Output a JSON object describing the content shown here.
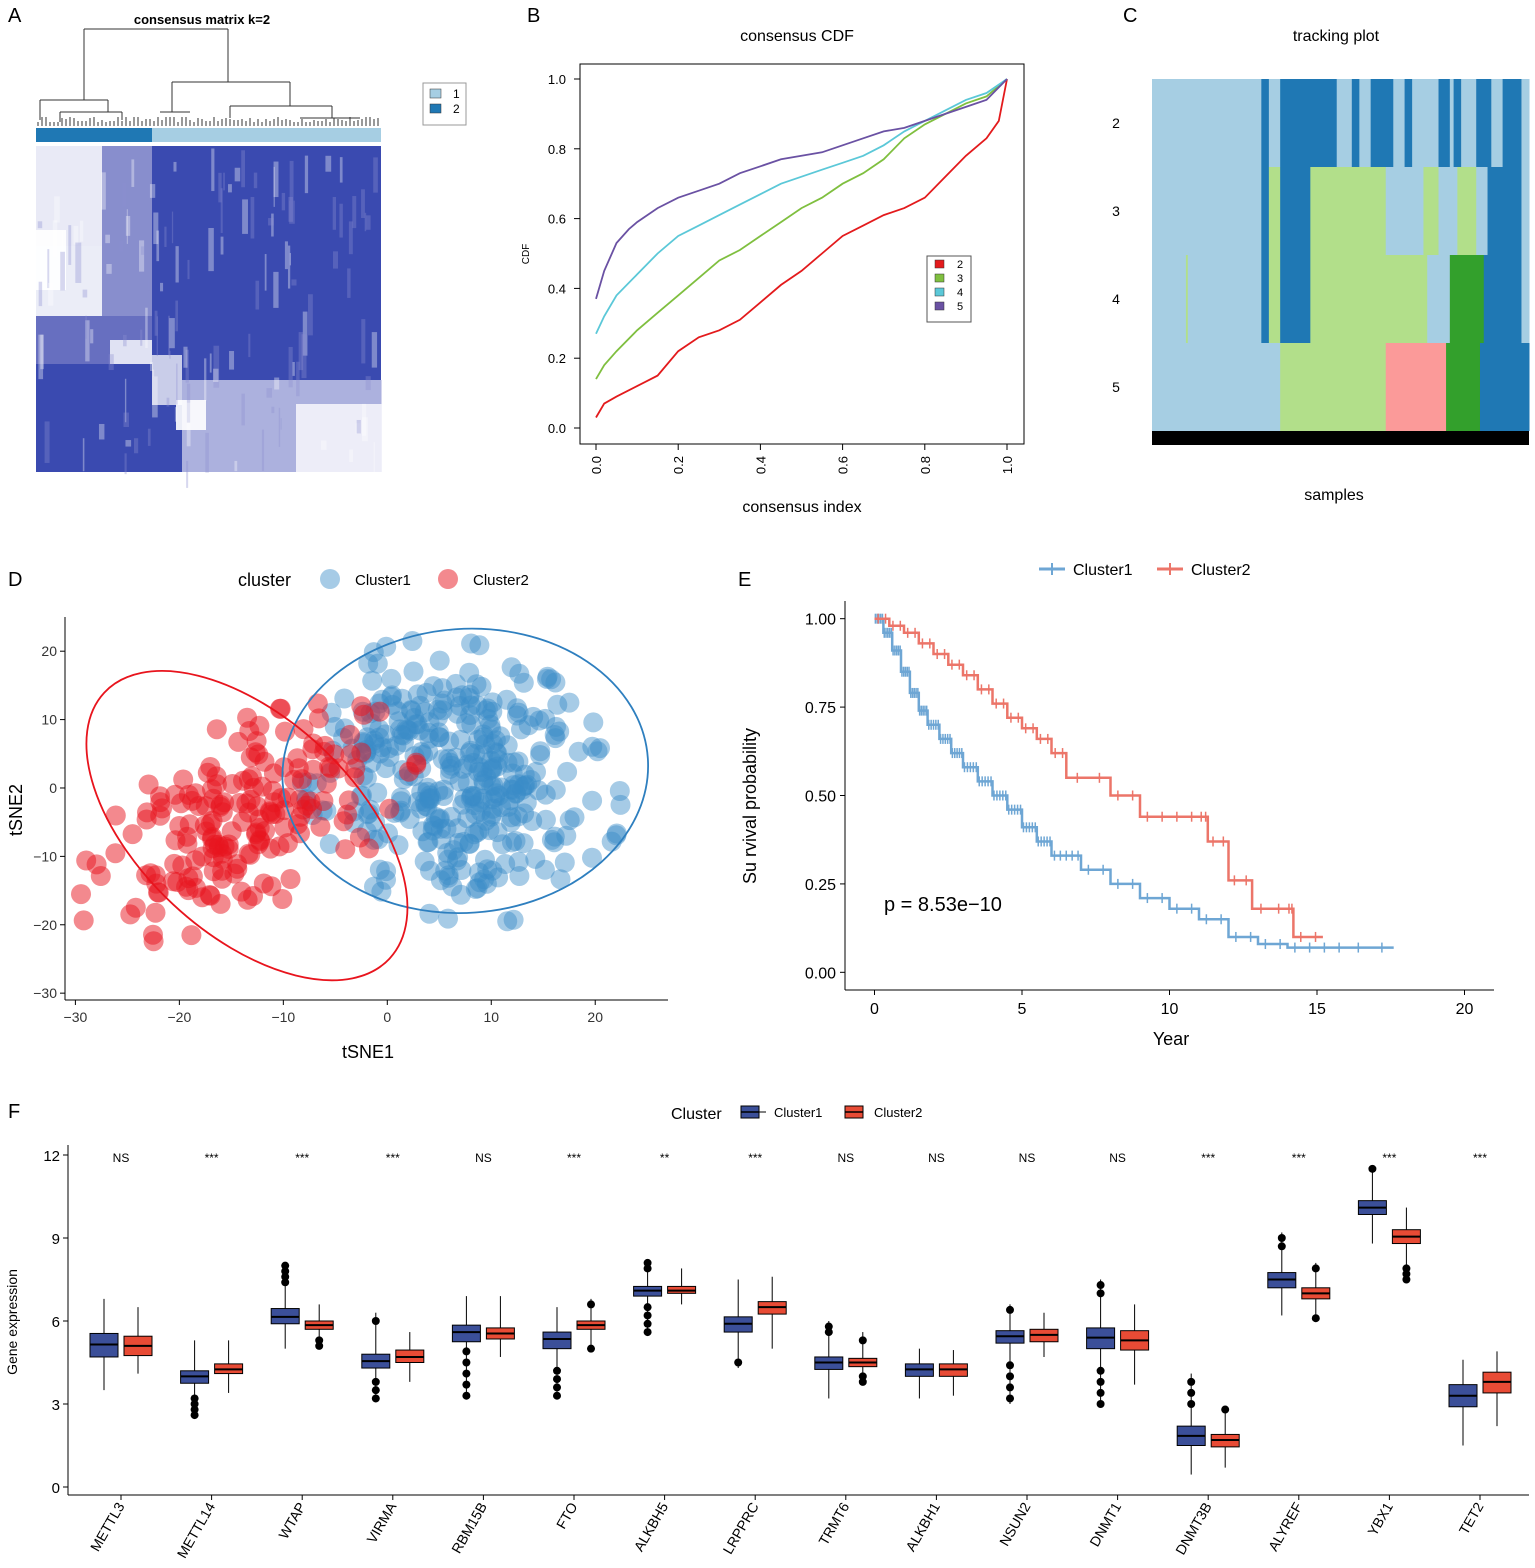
{
  "panels": {
    "A": {
      "letter": "A",
      "title": "consensus matrix k=2",
      "legend": [
        {
          "label": "1",
          "color": "#a6cee3"
        },
        {
          "label": "2",
          "color": "#1f78b4"
        }
      ]
    },
    "B": {
      "letter": "B"
    },
    "C": {
      "letter": "C"
    },
    "D": {
      "letter": "D"
    },
    "E": {
      "letter": "E"
    },
    "F": {
      "letter": "F"
    }
  },
  "chart_data": [
    {
      "id": "B",
      "type": "line",
      "title": "consensus CDF",
      "xlabel": "consensus index",
      "ylabel": "CDF",
      "xlim": [
        0,
        1
      ],
      "ylim": [
        0,
        1
      ],
      "xticks": [
        "0.0",
        "0.2",
        "0.4",
        "0.6",
        "0.8",
        "1.0"
      ],
      "yticks": [
        "0.0",
        "0.2",
        "0.4",
        "0.6",
        "0.8",
        "1.0"
      ],
      "series": [
        {
          "name": "2",
          "color": "#e31a1c",
          "x": [
            0,
            0.02,
            0.05,
            0.1,
            0.15,
            0.2,
            0.25,
            0.3,
            0.35,
            0.4,
            0.45,
            0.5,
            0.55,
            0.6,
            0.65,
            0.7,
            0.75,
            0.8,
            0.85,
            0.9,
            0.95,
            0.98,
            1.0
          ],
          "y": [
            0.03,
            0.07,
            0.09,
            0.12,
            0.15,
            0.22,
            0.26,
            0.28,
            0.31,
            0.36,
            0.41,
            0.45,
            0.5,
            0.55,
            0.58,
            0.61,
            0.63,
            0.66,
            0.72,
            0.78,
            0.83,
            0.88,
            1.0
          ]
        },
        {
          "name": "3",
          "color": "#7fbf3f",
          "x": [
            0,
            0.02,
            0.05,
            0.1,
            0.15,
            0.2,
            0.25,
            0.3,
            0.35,
            0.4,
            0.45,
            0.5,
            0.55,
            0.6,
            0.65,
            0.7,
            0.75,
            0.8,
            0.85,
            0.9,
            0.95,
            1.0
          ],
          "y": [
            0.14,
            0.18,
            0.22,
            0.28,
            0.33,
            0.38,
            0.43,
            0.48,
            0.51,
            0.55,
            0.59,
            0.63,
            0.66,
            0.7,
            0.73,
            0.77,
            0.83,
            0.87,
            0.9,
            0.93,
            0.95,
            1.0
          ]
        },
        {
          "name": "4",
          "color": "#5bc8d8",
          "x": [
            0,
            0.02,
            0.05,
            0.1,
            0.15,
            0.2,
            0.25,
            0.3,
            0.35,
            0.4,
            0.45,
            0.5,
            0.55,
            0.6,
            0.65,
            0.7,
            0.75,
            0.8,
            0.85,
            0.9,
            0.95,
            1.0
          ],
          "y": [
            0.27,
            0.32,
            0.38,
            0.44,
            0.5,
            0.55,
            0.58,
            0.61,
            0.64,
            0.67,
            0.7,
            0.72,
            0.74,
            0.76,
            0.78,
            0.81,
            0.85,
            0.88,
            0.91,
            0.94,
            0.96,
            1.0
          ]
        },
        {
          "name": "5",
          "color": "#6a51a3",
          "x": [
            0,
            0.02,
            0.05,
            0.08,
            0.1,
            0.15,
            0.2,
            0.25,
            0.3,
            0.35,
            0.4,
            0.45,
            0.5,
            0.55,
            0.6,
            0.65,
            0.7,
            0.75,
            0.8,
            0.85,
            0.9,
            0.95,
            1.0
          ],
          "y": [
            0.37,
            0.45,
            0.53,
            0.57,
            0.59,
            0.63,
            0.66,
            0.68,
            0.7,
            0.73,
            0.75,
            0.77,
            0.78,
            0.79,
            0.81,
            0.83,
            0.85,
            0.86,
            0.88,
            0.9,
            0.92,
            0.94,
            1.0
          ]
        }
      ]
    },
    {
      "id": "C",
      "type": "heatmap",
      "title": "tracking plot",
      "xlabel": "samples",
      "rows": [
        "2",
        "3",
        "4",
        "5"
      ],
      "colors": {
        "1": "#a6cee3",
        "2": "#1f78b4",
        "3": "#b2df8a",
        "4": "#33a02c",
        "5": "#fb9a99"
      },
      "segments": [
        [
          [
            0,
            0.29,
            "1"
          ],
          [
            0.29,
            0.31,
            "2"
          ],
          [
            0.31,
            0.34,
            "1"
          ],
          [
            0.34,
            0.49,
            "2"
          ],
          [
            0.49,
            0.53,
            "1"
          ],
          [
            0.53,
            0.55,
            "2"
          ],
          [
            0.55,
            0.58,
            "1"
          ],
          [
            0.58,
            0.64,
            "2"
          ],
          [
            0.64,
            0.67,
            "1"
          ],
          [
            0.67,
            0.69,
            "2"
          ],
          [
            0.69,
            0.76,
            "1"
          ],
          [
            0.76,
            0.79,
            "2"
          ],
          [
            0.79,
            0.8,
            "1"
          ],
          [
            0.8,
            0.82,
            "2"
          ],
          [
            0.82,
            0.86,
            "1"
          ],
          [
            0.86,
            0.9,
            "2"
          ],
          [
            0.9,
            0.93,
            "1"
          ],
          [
            0.93,
            0.98,
            "2"
          ],
          [
            0.98,
            1,
            "1"
          ]
        ],
        [
          [
            0,
            0.29,
            "1"
          ],
          [
            0.29,
            0.31,
            "2"
          ],
          [
            0.31,
            0.34,
            "3"
          ],
          [
            0.34,
            0.42,
            "2"
          ],
          [
            0.42,
            0.62,
            "3"
          ],
          [
            0.62,
            0.72,
            "1"
          ],
          [
            0.72,
            0.76,
            "3"
          ],
          [
            0.76,
            0.81,
            "1"
          ],
          [
            0.81,
            0.86,
            "3"
          ],
          [
            0.86,
            0.89,
            "1"
          ],
          [
            0.89,
            0.98,
            "2"
          ],
          [
            0.98,
            1,
            "1"
          ]
        ],
        [
          [
            0,
            0.09,
            "1"
          ],
          [
            0.09,
            0.095,
            "3"
          ],
          [
            0.095,
            0.29,
            "1"
          ],
          [
            0.29,
            0.31,
            "2"
          ],
          [
            0.31,
            0.34,
            "3"
          ],
          [
            0.34,
            0.42,
            "2"
          ],
          [
            0.42,
            0.73,
            "3"
          ],
          [
            0.73,
            0.79,
            "1"
          ],
          [
            0.79,
            0.88,
            "4"
          ],
          [
            0.88,
            0.98,
            "2"
          ],
          [
            0.98,
            1,
            "1"
          ]
        ],
        [
          [
            0,
            0.34,
            "1"
          ],
          [
            0.34,
            0.62,
            "3"
          ],
          [
            0.62,
            0.78,
            "5"
          ],
          [
            0.78,
            0.87,
            "4"
          ],
          [
            0.87,
            1,
            "2"
          ]
        ]
      ]
    },
    {
      "id": "D",
      "type": "scatter",
      "xlabel": "tSNE1",
      "ylabel": "tSNE2",
      "xlim": [
        -31,
        27
      ],
      "ylim": [
        -31,
        25
      ],
      "xticks": [
        "-30",
        "-20",
        "-10",
        "0",
        "10",
        "20"
      ],
      "yticks": [
        "-30",
        "-20",
        "-10",
        "0",
        "10",
        "20"
      ],
      "legend_title": "cluster",
      "series": [
        {
          "name": "Cluster1",
          "color": "#3a8cc8",
          "count": 360,
          "center": [
            7,
            1
          ],
          "spread": [
            15,
            21
          ]
        },
        {
          "name": "Cluster2",
          "color": "#e8141d",
          "count": 190,
          "center": [
            -14,
            -5
          ],
          "spread": [
            12,
            21
          ]
        }
      ]
    },
    {
      "id": "E",
      "type": "line",
      "xlabel": "Year",
      "ylabel": "Su rvival probability",
      "annotation": "p = 8.53e−10",
      "xlim": [
        -1,
        21
      ],
      "ylim": [
        -0.05,
        1.05
      ],
      "xticks": [
        "0",
        "5",
        "10",
        "15",
        "20"
      ],
      "yticks": [
        "0.00",
        "0.25",
        "0.50",
        "0.75",
        "1.00"
      ],
      "series": [
        {
          "name": "Cluster1",
          "color": "#6ea6d4",
          "x": [
            0,
            0.3,
            0.6,
            0.9,
            1.2,
            1.5,
            1.8,
            2.2,
            2.6,
            3,
            3.5,
            4,
            4.5,
            5,
            5.5,
            6,
            7,
            8,
            9,
            10,
            11,
            12,
            13,
            14,
            15,
            16,
            17.6
          ],
          "y": [
            1,
            0.96,
            0.91,
            0.85,
            0.79,
            0.74,
            0.7,
            0.66,
            0.62,
            0.58,
            0.54,
            0.5,
            0.46,
            0.41,
            0.37,
            0.33,
            0.29,
            0.25,
            0.21,
            0.18,
            0.15,
            0.1,
            0.08,
            0.07,
            0.07,
            0.07,
            0.07
          ]
        },
        {
          "name": "Cluster2",
          "color": "#ec7569",
          "x": [
            0,
            0.5,
            1,
            1.5,
            2,
            2.5,
            3,
            3.5,
            4,
            4.5,
            5,
            5.5,
            6,
            6.5,
            8,
            9,
            10,
            11,
            11.3,
            12,
            12.8,
            14,
            14.2,
            15.2
          ],
          "y": [
            1,
            0.98,
            0.96,
            0.93,
            0.9,
            0.87,
            0.84,
            0.8,
            0.76,
            0.72,
            0.69,
            0.66,
            0.62,
            0.55,
            0.5,
            0.44,
            0.44,
            0.44,
            0.37,
            0.26,
            0.18,
            0.18,
            0.1,
            0.1
          ]
        }
      ]
    },
    {
      "id": "F",
      "type": "box",
      "ylabel": "Gene expression",
      "ylim": [
        0,
        12
      ],
      "yticks": [
        "0",
        "3",
        "6",
        "9",
        "12"
      ],
      "legend_title": "Cluster",
      "series_names": [
        "Cluster1",
        "Cluster2"
      ],
      "series_colors": [
        "#3b4f99",
        "#e84b35"
      ],
      "categories": [
        "METTL3",
        "METTL14",
        "WTAP",
        "VIRMA",
        "RBM15B",
        "FTO",
        "ALKBH5",
        "LRPPRC",
        "TRMT6",
        "ALKBH1",
        "NSUN2",
        "DNMT1",
        "DNMT3B",
        "ALYREF",
        "YBX1",
        "TET2"
      ],
      "significance": [
        "NS",
        "***",
        "***",
        "***",
        "NS",
        "***",
        "**",
        "***",
        "NS",
        "NS",
        "NS",
        "NS",
        "***",
        "***",
        "***",
        "***"
      ],
      "boxes": [
        [
          [
            3.5,
            4.7,
            5.15,
            5.55,
            6.8
          ],
          [
            4.1,
            4.75,
            5.1,
            5.45,
            6.5
          ]
        ],
        [
          [
            2.5,
            3.75,
            4.0,
            4.2,
            5.3
          ],
          [
            3.4,
            4.1,
            4.25,
            4.45,
            5.3
          ]
        ],
        [
          [
            5.0,
            5.9,
            6.15,
            6.45,
            8.1
          ],
          [
            5.0,
            5.7,
            5.85,
            6.0,
            6.6
          ]
        ],
        [
          [
            3.1,
            4.3,
            4.55,
            4.8,
            6.3
          ],
          [
            3.8,
            4.5,
            4.7,
            4.95,
            5.6
          ]
        ],
        [
          [
            3.2,
            5.25,
            5.6,
            5.85,
            6.9
          ],
          [
            4.7,
            5.35,
            5.55,
            5.75,
            6.9
          ]
        ],
        [
          [
            3.2,
            5.0,
            5.35,
            5.6,
            6.5
          ],
          [
            4.9,
            5.7,
            5.85,
            6.0,
            6.8
          ]
        ],
        [
          [
            5.5,
            6.9,
            7.1,
            7.25,
            8.2
          ],
          [
            6.6,
            7.0,
            7.1,
            7.25,
            7.9
          ]
        ],
        [
          [
            4.3,
            5.6,
            5.9,
            6.15,
            7.5
          ],
          [
            5.0,
            6.25,
            6.5,
            6.7,
            7.6
          ]
        ],
        [
          [
            3.2,
            4.25,
            4.5,
            4.7,
            6.0
          ],
          [
            3.7,
            4.35,
            4.5,
            4.65,
            5.6
          ]
        ],
        [
          [
            3.2,
            4.0,
            4.25,
            4.45,
            5.0
          ],
          [
            3.3,
            4.0,
            4.25,
            4.45,
            4.95
          ]
        ],
        [
          [
            3.0,
            5.2,
            5.45,
            5.65,
            6.6
          ],
          [
            4.7,
            5.25,
            5.5,
            5.7,
            6.3
          ]
        ],
        [
          [
            2.9,
            5.0,
            5.4,
            5.75,
            7.5
          ],
          [
            3.7,
            4.95,
            5.3,
            5.65,
            6.6
          ]
        ],
        [
          [
            0.45,
            1.5,
            1.85,
            2.2,
            4.1
          ],
          [
            0.7,
            1.45,
            1.7,
            1.9,
            2.9
          ]
        ],
        [
          [
            6.2,
            7.2,
            7.5,
            7.75,
            9.2
          ],
          [
            6.0,
            6.8,
            7.0,
            7.2,
            8.1
          ]
        ],
        [
          [
            8.8,
            9.85,
            10.1,
            10.35,
            11.6
          ],
          [
            7.4,
            8.8,
            9.05,
            9.3,
            10.1
          ]
        ],
        [
          [
            1.5,
            2.9,
            3.3,
            3.7,
            4.6
          ],
          [
            2.2,
            3.4,
            3.8,
            4.15,
            4.9
          ]
        ]
      ],
      "outliers": [
        [
          [],
          []
        ],
        [
          [
            2.6,
            2.8,
            3.0,
            3.2
          ],
          []
        ],
        [
          [
            7.4,
            7.6,
            7.8,
            8.0
          ],
          [
            5.1,
            5.3
          ]
        ],
        [
          [
            3.2,
            3.5,
            3.8,
            6.0
          ],
          []
        ],
        [
          [
            3.3,
            3.7,
            4.1,
            4.5,
            4.9
          ],
          []
        ],
        [
          [
            3.3,
            3.6,
            3.9,
            4.2
          ],
          [
            5.0,
            6.6
          ]
        ],
        [
          [
            5.6,
            5.9,
            6.2,
            6.5,
            7.9,
            8.1
          ],
          []
        ],
        [
          [
            4.5
          ],
          []
        ],
        [
          [
            5.6,
            5.8
          ],
          [
            3.8,
            4.0,
            5.3
          ]
        ],
        [
          [],
          []
        ],
        [
          [
            3.2,
            3.6,
            4.0,
            4.4,
            6.4
          ],
          []
        ],
        [
          [
            3.0,
            3.4,
            3.8,
            4.2,
            7.0,
            7.3
          ],
          []
        ],
        [
          [
            3.0,
            3.4,
            3.8
          ],
          [
            2.8
          ]
        ],
        [
          [
            8.7,
            9.0
          ],
          [
            6.1,
            7.9
          ]
        ],
        [
          [
            11.5
          ],
          [
            7.5,
            7.7,
            7.9
          ]
        ],
        [
          [],
          []
        ]
      ]
    }
  ]
}
